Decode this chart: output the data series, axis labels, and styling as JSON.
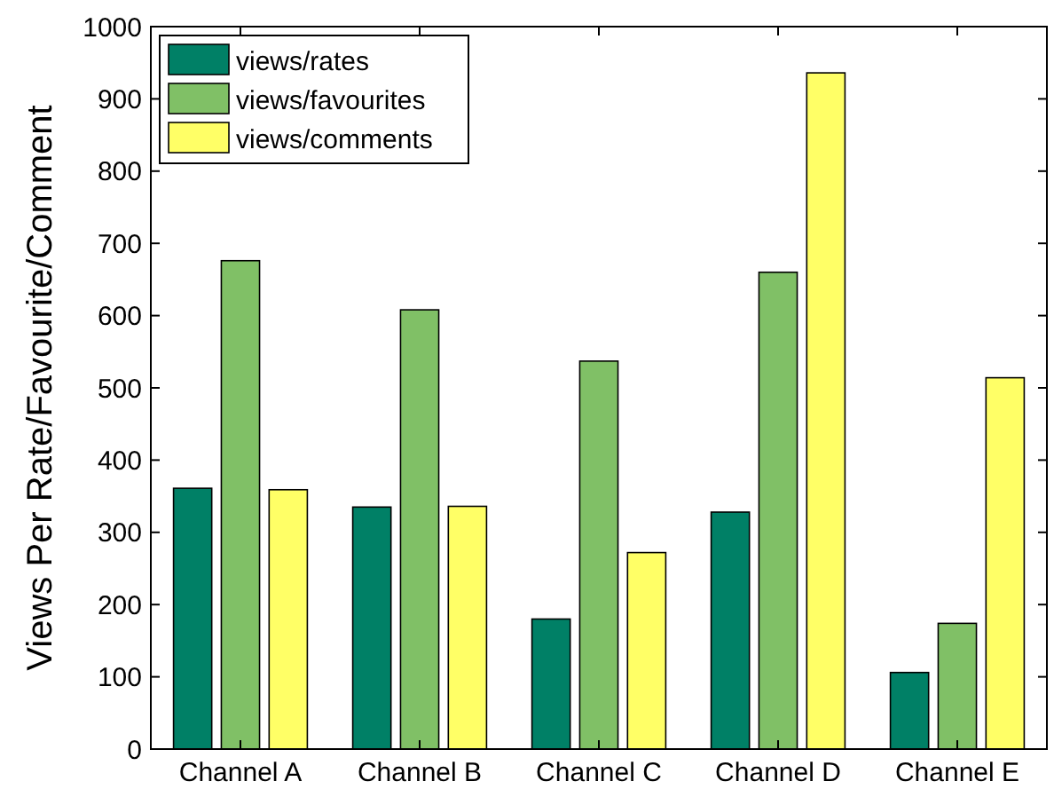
{
  "chart_data": {
    "type": "bar",
    "ylabel": "Views Per Rate/Favourite/Comment",
    "categories": [
      "Channel A",
      "Channel B",
      "Channel C",
      "Channel D",
      "Channel E"
    ],
    "series": [
      {
        "name": "views/rates",
        "color": "#008066",
        "values": [
          361,
          335,
          180,
          328,
          106
        ]
      },
      {
        "name": "views/favourites",
        "color": "#80c066",
        "values": [
          676,
          608,
          537,
          660,
          174
        ]
      },
      {
        "name": "views/comments",
        "color": "#ffff66",
        "values": [
          359,
          336,
          272,
          936,
          514
        ]
      }
    ],
    "ylim": [
      0,
      1000
    ],
    "yticks": [
      0,
      100,
      200,
      300,
      400,
      500,
      600,
      700,
      800,
      900,
      1000
    ],
    "grid": false,
    "legend": "top left"
  }
}
